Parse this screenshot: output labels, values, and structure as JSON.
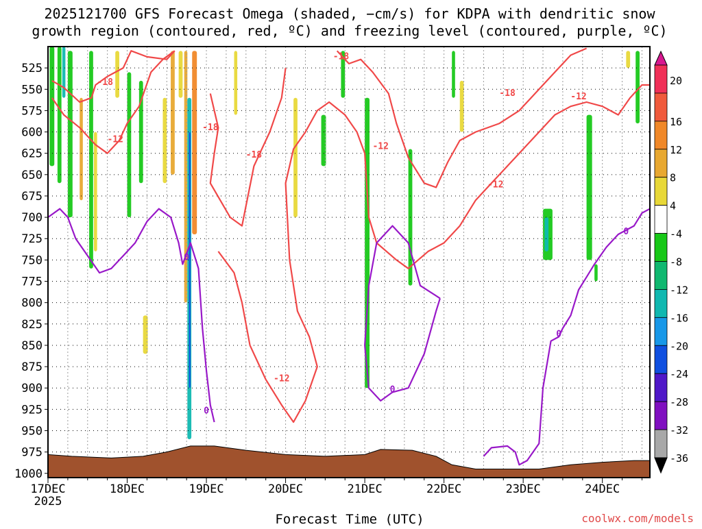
{
  "chart_data": {
    "type": "contour",
    "title_line1": "2025121700 GFS Forecast Omega (shaded, −cm/s) for KDPA with dendritic snow",
    "title_line2": "growth region (contoured, red, ºC) and freezing level (contoured, purple, ºC)",
    "xlabel": "Forecast Time (UTC)",
    "x_ticks": [
      {
        "label": "17DEC",
        "value": 0
      },
      {
        "label": "18DEC",
        "value": 1
      },
      {
        "label": "19DEC",
        "value": 2
      },
      {
        "label": "20DEC",
        "value": 3
      },
      {
        "label": "21DEC",
        "value": 4
      },
      {
        "label": "22DEC",
        "value": 5
      },
      {
        "label": "23DEC",
        "value": 6
      },
      {
        "label": "24DEC",
        "value": 7
      }
    ],
    "x_year_label": "2025",
    "xlim": [
      0,
      7.6
    ],
    "y_ticks": [
      525,
      550,
      575,
      600,
      625,
      650,
      675,
      700,
      725,
      750,
      775,
      800,
      825,
      850,
      875,
      900,
      925,
      950,
      975,
      1000
    ],
    "ylim": [
      1005,
      500
    ],
    "colorbar": {
      "labels": [
        "20",
        "16",
        "12",
        "8",
        "4",
        "-4",
        "-8",
        "-12",
        "-16",
        "-20",
        "-24",
        "-28",
        "-32",
        "-36"
      ],
      "colors": [
        "#f03058",
        "#f05a3c",
        "#f08828",
        "#e8a830",
        "#e8d838",
        "#ffffff",
        "#18c818",
        "#10b870",
        "#10b8b0",
        "#1898e8",
        "#1050e0",
        "#5018c8",
        "#8010c0",
        "#a8a8a8"
      ]
    },
    "series": [
      {
        "name": "-18",
        "color": "#f04848",
        "points": [
          [
            0.05,
            540
          ],
          [
            0.2,
            548
          ],
          [
            0.4,
            565
          ],
          [
            0.55,
            560
          ],
          [
            0.6,
            545
          ],
          [
            0.75,
            535
          ],
          [
            0.95,
            525
          ],
          [
            1.05,
            505
          ],
          [
            1.25,
            512
          ],
          [
            1.5,
            515
          ],
          [
            1.6,
            505
          ]
        ]
      },
      {
        "name": "-18",
        "color": "#f04848",
        "points": [
          [
            2.05,
            555
          ],
          [
            2.15,
            595
          ],
          [
            2.1,
            625
          ],
          [
            2.05,
            660
          ],
          [
            2.3,
            700
          ],
          [
            2.45,
            710
          ],
          [
            2.6,
            640
          ],
          [
            2.8,
            600
          ],
          [
            2.95,
            560
          ],
          [
            3.0,
            525
          ]
        ]
      },
      {
        "name": "-18",
        "color": "#f04848",
        "points": [
          [
            3.65,
            505
          ],
          [
            3.8,
            520
          ],
          [
            3.95,
            515
          ],
          [
            4.1,
            530
          ],
          [
            4.3,
            555
          ],
          [
            4.4,
            590
          ],
          [
            4.55,
            630
          ],
          [
            4.75,
            660
          ],
          [
            4.9,
            665
          ],
          [
            5.05,
            635
          ],
          [
            5.2,
            610
          ],
          [
            5.4,
            600
          ],
          [
            5.7,
            590
          ],
          [
            5.95,
            575
          ],
          [
            6.1,
            560
          ],
          [
            6.25,
            545
          ],
          [
            6.45,
            525
          ],
          [
            6.6,
            510
          ],
          [
            6.8,
            502
          ]
        ]
      },
      {
        "name": "-12",
        "color": "#f04848",
        "points": [
          [
            0.05,
            560
          ],
          [
            0.2,
            580
          ],
          [
            0.4,
            595
          ],
          [
            0.6,
            615
          ],
          [
            0.75,
            625
          ],
          [
            0.9,
            610
          ],
          [
            1.0,
            590
          ],
          [
            1.15,
            570
          ],
          [
            1.3,
            530
          ],
          [
            1.45,
            515
          ],
          [
            1.6,
            505
          ]
        ]
      },
      {
        "name": "-12",
        "color": "#f04848",
        "points": [
          [
            2.15,
            740
          ],
          [
            2.35,
            765
          ],
          [
            2.45,
            800
          ],
          [
            2.55,
            850
          ],
          [
            2.75,
            890
          ],
          [
            2.95,
            920
          ],
          [
            3.1,
            940
          ],
          [
            3.25,
            915
          ],
          [
            3.4,
            875
          ],
          [
            3.3,
            840
          ],
          [
            3.15,
            810
          ],
          [
            3.05,
            750
          ],
          [
            3.0,
            660
          ],
          [
            3.1,
            620
          ],
          [
            3.25,
            600
          ],
          [
            3.4,
            575
          ],
          [
            3.55,
            565
          ],
          [
            3.75,
            580
          ],
          [
            3.9,
            600
          ],
          [
            4.0,
            625
          ],
          [
            4.05,
            700
          ],
          [
            4.15,
            730
          ],
          [
            4.4,
            750
          ],
          [
            4.55,
            760
          ],
          [
            4.8,
            740
          ],
          [
            5.0,
            730
          ],
          [
            5.2,
            710
          ],
          [
            5.4,
            680
          ],
          [
            5.6,
            660
          ],
          [
            5.8,
            640
          ],
          [
            6.0,
            620
          ],
          [
            6.2,
            600
          ],
          [
            6.4,
            580
          ],
          [
            6.6,
            570
          ],
          [
            6.8,
            565
          ],
          [
            7.0,
            570
          ],
          [
            7.2,
            580
          ],
          [
            7.35,
            560
          ],
          [
            7.5,
            545
          ],
          [
            7.6,
            545
          ]
        ]
      },
      {
        "name": "0",
        "color": "#9818c8",
        "points": [
          [
            0.0,
            700
          ],
          [
            0.15,
            690
          ],
          [
            0.25,
            700
          ],
          [
            0.35,
            725
          ],
          [
            0.5,
            745
          ],
          [
            0.65,
            765
          ],
          [
            0.8,
            760
          ],
          [
            0.95,
            745
          ],
          [
            1.1,
            730
          ],
          [
            1.25,
            705
          ],
          [
            1.4,
            690
          ],
          [
            1.55,
            700
          ],
          [
            1.65,
            730
          ],
          [
            1.7,
            755
          ],
          [
            1.8,
            730
          ],
          [
            1.9,
            760
          ],
          [
            1.95,
            830
          ],
          [
            2.0,
            880
          ],
          [
            2.05,
            920
          ],
          [
            2.1,
            940
          ]
        ]
      },
      {
        "name": "0",
        "color": "#9818c8",
        "points": [
          [
            4.95,
            795
          ],
          [
            4.7,
            780
          ],
          [
            4.55,
            730
          ],
          [
            4.35,
            710
          ],
          [
            4.15,
            730
          ],
          [
            4.05,
            780
          ],
          [
            4.0,
            850
          ],
          [
            4.05,
            900
          ],
          [
            4.2,
            915
          ],
          [
            4.35,
            905
          ],
          [
            4.55,
            900
          ],
          [
            4.75,
            860
          ],
          [
            4.9,
            810
          ],
          [
            4.95,
            795
          ]
        ]
      },
      {
        "name": "0",
        "color": "#9818c8",
        "points": [
          [
            5.5,
            980
          ],
          [
            5.6,
            970
          ],
          [
            5.8,
            968
          ],
          [
            5.9,
            975
          ],
          [
            5.95,
            990
          ],
          [
            6.05,
            985
          ],
          [
            6.2,
            965
          ],
          [
            6.25,
            900
          ],
          [
            6.35,
            845
          ],
          [
            6.45,
            840
          ],
          [
            6.5,
            830
          ],
          [
            6.6,
            815
          ],
          [
            6.7,
            785
          ],
          [
            6.8,
            770
          ],
          [
            6.9,
            755
          ],
          [
            7.05,
            735
          ],
          [
            7.2,
            720
          ],
          [
            7.4,
            710
          ],
          [
            7.5,
            695
          ],
          [
            7.6,
            690
          ]
        ]
      }
    ],
    "contour_labels": [
      {
        "text": "-18",
        "x": 0.72,
        "y": 545,
        "color": "#f04848"
      },
      {
        "text": "-12",
        "x": 0.85,
        "y": 612,
        "color": "#f04848"
      },
      {
        "text": "-18",
        "x": 2.05,
        "y": 598,
        "color": "#f04848"
      },
      {
        "text": "-18",
        "x": 2.6,
        "y": 630,
        "color": "#f04848"
      },
      {
        "text": "-18",
        "x": 3.7,
        "y": 515,
        "color": "#f04848"
      },
      {
        "text": "-12",
        "x": 4.2,
        "y": 620,
        "color": "#f04848"
      },
      {
        "text": "-18",
        "x": 5.8,
        "y": 558,
        "color": "#f04848"
      },
      {
        "text": "-12",
        "x": 5.65,
        "y": 665,
        "color": "#f04848"
      },
      {
        "text": "-12",
        "x": 6.7,
        "y": 562,
        "color": "#f04848"
      },
      {
        "text": "-12",
        "x": 2.95,
        "y": 892,
        "color": "#f04848"
      },
      {
        "text": "0",
        "x": 1.75,
        "y": 750,
        "color": "#9818c8"
      },
      {
        "text": "0",
        "x": 2.0,
        "y": 930,
        "color": "#9818c8"
      },
      {
        "text": "0",
        "x": 4.35,
        "y": 905,
        "color": "#9818c8"
      },
      {
        "text": "0",
        "x": 6.45,
        "y": 840,
        "color": "#9818c8"
      },
      {
        "text": "0",
        "x": 7.3,
        "y": 720,
        "color": "#9818c8"
      }
    ],
    "terrain": {
      "color": "#a0522d",
      "points": [
        [
          0,
          978
        ],
        [
          0.3,
          980
        ],
        [
          0.8,
          982
        ],
        [
          1.2,
          980
        ],
        [
          1.5,
          975
        ],
        [
          1.8,
          968
        ],
        [
          2.1,
          968
        ],
        [
          2.5,
          973
        ],
        [
          3.0,
          978
        ],
        [
          3.5,
          980
        ],
        [
          4.0,
          978
        ],
        [
          4.2,
          972
        ],
        [
          4.6,
          973
        ],
        [
          4.9,
          980
        ],
        [
          5.1,
          990
        ],
        [
          5.4,
          995
        ],
        [
          5.8,
          995
        ],
        [
          6.2,
          995
        ],
        [
          6.6,
          990
        ],
        [
          7.0,
          987
        ],
        [
          7.4,
          985
        ],
        [
          7.6,
          985
        ]
      ]
    },
    "shaded_regions": [
      {
        "x": 0.02,
        "w": 0.06,
        "y0": 500,
        "y1": 640,
        "color": "#18c818"
      },
      {
        "x": 0.12,
        "w": 0.05,
        "y0": 500,
        "y1": 660,
        "color": "#18c818"
      },
      {
        "x": 0.18,
        "w": 0.04,
        "y0": 500,
        "y1": 560,
        "color": "#10b8b0"
      },
      {
        "x": 0.25,
        "w": 0.06,
        "y0": 505,
        "y1": 700,
        "color": "#18c818"
      },
      {
        "x": 0.4,
        "w": 0.04,
        "y0": 560,
        "y1": 680,
        "color": "#e8a830"
      },
      {
        "x": 0.52,
        "w": 0.05,
        "y0": 505,
        "y1": 760,
        "color": "#18c818"
      },
      {
        "x": 0.58,
        "w": 0.04,
        "y0": 600,
        "y1": 740,
        "color": "#e8d838"
      },
      {
        "x": 0.85,
        "w": 0.05,
        "y0": 505,
        "y1": 560,
        "color": "#e8d838"
      },
      {
        "x": 1.0,
        "w": 0.05,
        "y0": 530,
        "y1": 700,
        "color": "#18c818"
      },
      {
        "x": 1.15,
        "w": 0.05,
        "y0": 540,
        "y1": 660,
        "color": "#18c818"
      },
      {
        "x": 1.2,
        "w": 0.06,
        "y0": 815,
        "y1": 860,
        "color": "#e8d838"
      },
      {
        "x": 1.45,
        "w": 0.05,
        "y0": 560,
        "y1": 660,
        "color": "#e8d838"
      },
      {
        "x": 1.55,
        "w": 0.05,
        "y0": 505,
        "y1": 650,
        "color": "#e8a830"
      },
      {
        "x": 1.65,
        "w": 0.05,
        "y0": 505,
        "y1": 560,
        "color": "#e8d838"
      },
      {
        "x": 1.72,
        "w": 0.04,
        "y0": 505,
        "y1": 800,
        "color": "#e8a830"
      },
      {
        "x": 1.76,
        "w": 0.05,
        "y0": 560,
        "y1": 960,
        "color": "#10b8b0"
      },
      {
        "x": 1.78,
        "w": 0.02,
        "y0": 600,
        "y1": 900,
        "color": "#1050e0"
      },
      {
        "x": 1.82,
        "w": 0.06,
        "y0": 505,
        "y1": 720,
        "color": "#f08828"
      },
      {
        "x": 2.35,
        "w": 0.04,
        "y0": 505,
        "y1": 580,
        "color": "#e8d838"
      },
      {
        "x": 3.1,
        "w": 0.05,
        "y0": 560,
        "y1": 700,
        "color": "#e8d838"
      },
      {
        "x": 3.45,
        "w": 0.06,
        "y0": 580,
        "y1": 640,
        "color": "#18c818"
      },
      {
        "x": 3.7,
        "w": 0.05,
        "y0": 505,
        "y1": 560,
        "color": "#18c818"
      },
      {
        "x": 4.0,
        "w": 0.06,
        "y0": 560,
        "y1": 900,
        "color": "#18c818"
      },
      {
        "x": 4.55,
        "w": 0.05,
        "y0": 620,
        "y1": 780,
        "color": "#18c818"
      },
      {
        "x": 5.1,
        "w": 0.04,
        "y0": 505,
        "y1": 560,
        "color": "#18c818"
      },
      {
        "x": 5.2,
        "w": 0.05,
        "y0": 540,
        "y1": 600,
        "color": "#e8d838"
      },
      {
        "x": 6.25,
        "w": 0.12,
        "y0": 690,
        "y1": 750,
        "color": "#18c818"
      },
      {
        "x": 6.27,
        "w": 0.05,
        "y0": 700,
        "y1": 740,
        "color": "#10b8b0"
      },
      {
        "x": 6.8,
        "w": 0.07,
        "y0": 580,
        "y1": 750,
        "color": "#18c818"
      },
      {
        "x": 6.9,
        "w": 0.04,
        "y0": 755,
        "y1": 775,
        "color": "#18c818"
      },
      {
        "x": 7.3,
        "w": 0.05,
        "y0": 505,
        "y1": 525,
        "color": "#e8d838"
      },
      {
        "x": 7.42,
        "w": 0.05,
        "y0": 505,
        "y1": 590,
        "color": "#18c818"
      }
    ],
    "credit": "coolwx.com/models"
  }
}
